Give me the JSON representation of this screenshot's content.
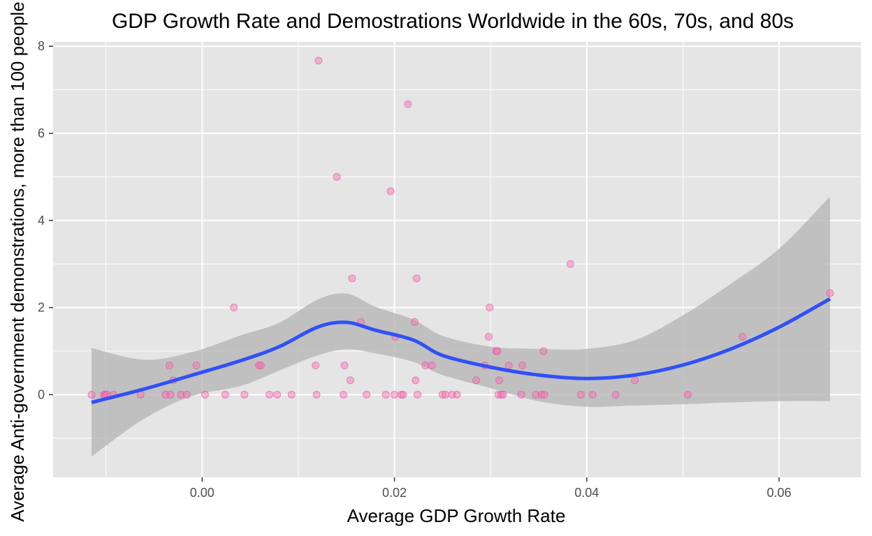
{
  "chart_data": {
    "type": "scatter",
    "title": "GDP Growth Rate and Demostrations Worldwide in the 60s, 70s, and 80s",
    "xlabel": "Average GDP Growth Rate",
    "ylabel": "Average Anti-government demonstrations, more than 100 people",
    "xlim": [
      -0.0155,
      0.0685
    ],
    "ylim": [
      -1.9,
      8.1
    ],
    "x_ticks": [
      0.0,
      0.02,
      0.04,
      0.06
    ],
    "x_tick_labels": [
      "0.00",
      "0.02",
      "0.04",
      "0.06"
    ],
    "y_ticks": [
      0,
      2,
      4,
      6,
      8
    ],
    "y_tick_labels": [
      "0",
      "2",
      "4",
      "6",
      "8"
    ],
    "grid": true,
    "legend": "none",
    "colors": {
      "panel": "#e5e5e5",
      "grid": "#ffffff",
      "points": "#ff69b4",
      "smooth_line": "#3050f8",
      "confidence_band": "#b3b3b3"
    },
    "points": [
      {
        "x": -0.0115,
        "y": 0
      },
      {
        "x": -0.0102,
        "y": 0
      },
      {
        "x": -0.0101,
        "y": 0
      },
      {
        "x": -0.0099,
        "y": 0
      },
      {
        "x": -0.0092,
        "y": 0
      },
      {
        "x": -0.0064,
        "y": 0
      },
      {
        "x": -0.0038,
        "y": 0
      },
      {
        "x": -0.0034,
        "y": 0.67
      },
      {
        "x": -0.0033,
        "y": 0
      },
      {
        "x": -0.003,
        "y": 0.33
      },
      {
        "x": -0.0022,
        "y": 0
      },
      {
        "x": -0.0016,
        "y": 0
      },
      {
        "x": -0.0006,
        "y": 0.67
      },
      {
        "x": 0.0003,
        "y": 0
      },
      {
        "x": 0.0024,
        "y": 0
      },
      {
        "x": 0.0033,
        "y": 2.0
      },
      {
        "x": 0.0044,
        "y": 0
      },
      {
        "x": 0.0059,
        "y": 0.67
      },
      {
        "x": 0.0061,
        "y": 0.67
      },
      {
        "x": 0.007,
        "y": 0
      },
      {
        "x": 0.0078,
        "y": 0
      },
      {
        "x": 0.0093,
        "y": 0
      },
      {
        "x": 0.0118,
        "y": 0.67
      },
      {
        "x": 0.0119,
        "y": 0
      },
      {
        "x": 0.0121,
        "y": 7.67
      },
      {
        "x": 0.014,
        "y": 5.0
      },
      {
        "x": 0.0147,
        "y": 0
      },
      {
        "x": 0.0148,
        "y": 0.67
      },
      {
        "x": 0.0154,
        "y": 0.33
      },
      {
        "x": 0.0156,
        "y": 2.67
      },
      {
        "x": 0.0165,
        "y": 1.67
      },
      {
        "x": 0.0171,
        "y": 0
      },
      {
        "x": 0.0191,
        "y": 0
      },
      {
        "x": 0.0196,
        "y": 4.67
      },
      {
        "x": 0.02,
        "y": 0
      },
      {
        "x": 0.0201,
        "y": 1.33
      },
      {
        "x": 0.0207,
        "y": 0
      },
      {
        "x": 0.0209,
        "y": 0
      },
      {
        "x": 0.0214,
        "y": 6.67
      },
      {
        "x": 0.0221,
        "y": 1.67
      },
      {
        "x": 0.0222,
        "y": 0.33
      },
      {
        "x": 0.0223,
        "y": 2.67
      },
      {
        "x": 0.0224,
        "y": 0
      },
      {
        "x": 0.0232,
        "y": 0.67
      },
      {
        "x": 0.0239,
        "y": 0.67
      },
      {
        "x": 0.025,
        "y": 0
      },
      {
        "x": 0.0253,
        "y": 0
      },
      {
        "x": 0.026,
        "y": 0
      },
      {
        "x": 0.0265,
        "y": 0
      },
      {
        "x": 0.0285,
        "y": 0.33
      },
      {
        "x": 0.0294,
        "y": 0.67
      },
      {
        "x": 0.0298,
        "y": 1.33
      },
      {
        "x": 0.0299,
        "y": 2.0
      },
      {
        "x": 0.0306,
        "y": 1.0
      },
      {
        "x": 0.0307,
        "y": 1.0
      },
      {
        "x": 0.0308,
        "y": 0
      },
      {
        "x": 0.0309,
        "y": 0.33
      },
      {
        "x": 0.0311,
        "y": 0
      },
      {
        "x": 0.0313,
        "y": 0
      },
      {
        "x": 0.0319,
        "y": 0.67
      },
      {
        "x": 0.0332,
        "y": 0
      },
      {
        "x": 0.0333,
        "y": 0.67
      },
      {
        "x": 0.0347,
        "y": 0
      },
      {
        "x": 0.0353,
        "y": 0
      },
      {
        "x": 0.0355,
        "y": 1.0
      },
      {
        "x": 0.0356,
        "y": 0
      },
      {
        "x": 0.0383,
        "y": 3.0
      },
      {
        "x": 0.0394,
        "y": 0
      },
      {
        "x": 0.0406,
        "y": 0
      },
      {
        "x": 0.043,
        "y": 0
      },
      {
        "x": 0.045,
        "y": 0.33
      },
      {
        "x": 0.0505,
        "y": 0
      },
      {
        "x": 0.0562,
        "y": 1.33
      },
      {
        "x": 0.0653,
        "y": 2.33
      }
    ],
    "smooth": [
      {
        "x": -0.0115,
        "y": -0.18,
        "lo": -1.42,
        "hi": 1.07
      },
      {
        "x": -0.006,
        "y": 0.13,
        "lo": -0.55,
        "hi": 0.8
      },
      {
        "x": -0.001,
        "y": 0.45,
        "lo": -0.03,
        "hi": 0.98
      },
      {
        "x": 0.004,
        "y": 0.78,
        "lo": 0.2,
        "hi": 1.36
      },
      {
        "x": 0.008,
        "y": 1.1,
        "lo": 0.55,
        "hi": 1.65
      },
      {
        "x": 0.012,
        "y": 1.55,
        "lo": 0.9,
        "hi": 2.18
      },
      {
        "x": 0.015,
        "y": 1.66,
        "lo": 1.04,
        "hi": 2.32
      },
      {
        "x": 0.018,
        "y": 1.48,
        "lo": 0.95,
        "hi": 2.02
      },
      {
        "x": 0.022,
        "y": 1.25,
        "lo": 0.75,
        "hi": 1.72
      },
      {
        "x": 0.025,
        "y": 0.9,
        "lo": 0.45,
        "hi": 1.35
      },
      {
        "x": 0.03,
        "y": 0.63,
        "lo": 0.15,
        "hi": 1.1
      },
      {
        "x": 0.035,
        "y": 0.45,
        "lo": -0.15,
        "hi": 1.05
      },
      {
        "x": 0.04,
        "y": 0.37,
        "lo": -0.28,
        "hi": 1.05
      },
      {
        "x": 0.045,
        "y": 0.45,
        "lo": -0.25,
        "hi": 1.25
      },
      {
        "x": 0.05,
        "y": 0.68,
        "lo": -0.22,
        "hi": 1.82
      },
      {
        "x": 0.055,
        "y": 1.05,
        "lo": -0.18,
        "hi": 2.55
      },
      {
        "x": 0.06,
        "y": 1.55,
        "lo": -0.15,
        "hi": 3.35
      },
      {
        "x": 0.0653,
        "y": 2.2,
        "lo": -0.15,
        "hi": 4.55
      }
    ]
  }
}
